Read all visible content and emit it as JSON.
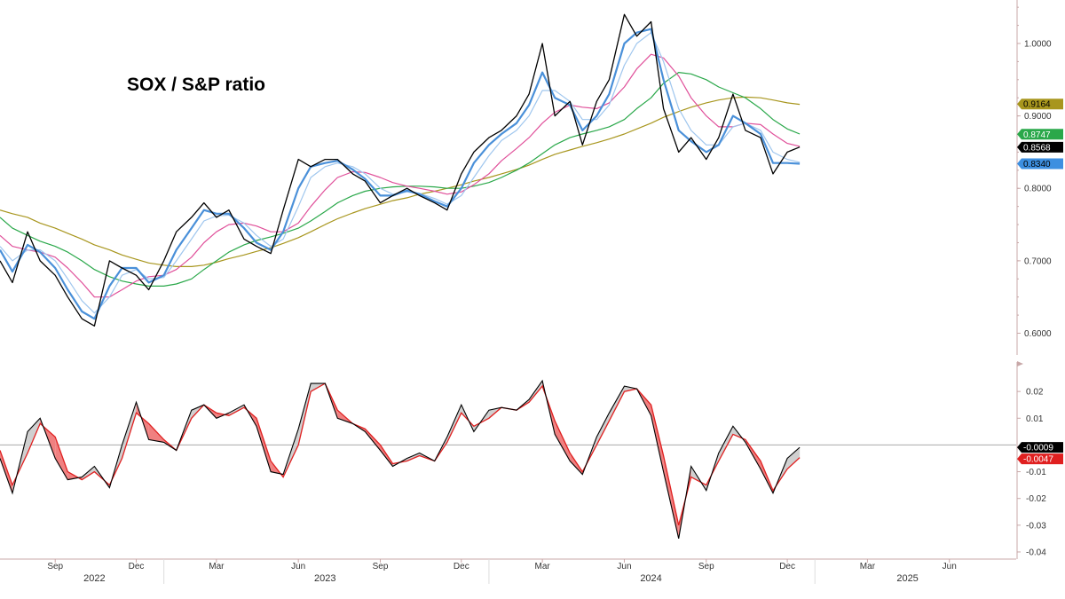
{
  "chart_data": [
    {
      "type": "line",
      "title": "SOX / S&P ratio",
      "ylim": [
        0.57,
        1.06
      ],
      "y_ticks": [
        "0.6000",
        "0.7000",
        "0.8000",
        "0.9000",
        "1.0000"
      ],
      "y_tick_values": [
        0.6,
        0.7,
        0.8,
        0.9,
        1.0
      ],
      "x_range": [
        "2022-07-01",
        "2025-08-15"
      ],
      "series": [
        {
          "key": "ratio",
          "color": "#000000",
          "x": [
            "2022-07-01",
            "2022-07-15",
            "2022-08-01",
            "2022-08-15",
            "2022-09-01",
            "2022-09-15",
            "2022-10-01",
            "2022-10-15",
            "2022-11-01",
            "2022-11-15",
            "2022-12-01",
            "2022-12-15",
            "2023-01-01",
            "2023-01-15",
            "2023-02-01",
            "2023-02-15",
            "2023-03-01",
            "2023-03-15",
            "2023-04-01",
            "2023-04-15",
            "2023-05-01",
            "2023-05-15",
            "2023-06-01",
            "2023-06-15",
            "2023-07-01",
            "2023-07-15",
            "2023-08-01",
            "2023-08-15",
            "2023-09-01",
            "2023-09-15",
            "2023-10-01",
            "2023-10-15",
            "2023-11-01",
            "2023-11-15",
            "2023-12-01",
            "2023-12-15",
            "2024-01-01",
            "2024-01-15",
            "2024-02-01",
            "2024-02-15",
            "2024-03-01",
            "2024-03-15",
            "2024-04-01",
            "2024-04-15",
            "2024-05-01",
            "2024-05-15",
            "2024-06-01",
            "2024-06-15",
            "2024-07-01",
            "2024-07-15",
            "2024-08-01",
            "2024-08-15",
            "2024-09-01",
            "2024-09-15",
            "2024-10-01",
            "2024-10-15",
            "2024-11-01",
            "2024-11-15",
            "2024-12-01",
            "2024-12-15"
          ],
          "y": [
            0.7,
            0.67,
            0.74,
            0.7,
            0.68,
            0.65,
            0.62,
            0.61,
            0.7,
            0.69,
            0.68,
            0.66,
            0.7,
            0.74,
            0.76,
            0.78,
            0.76,
            0.77,
            0.73,
            0.72,
            0.71,
            0.77,
            0.84,
            0.83,
            0.84,
            0.84,
            0.82,
            0.81,
            0.78,
            0.79,
            0.8,
            0.79,
            0.78,
            0.77,
            0.82,
            0.85,
            0.87,
            0.88,
            0.9,
            0.93,
            1.0,
            0.9,
            0.92,
            0.86,
            0.92,
            0.95,
            1.04,
            1.01,
            1.03,
            0.91,
            0.85,
            0.87,
            0.84,
            0.87,
            0.93,
            0.88,
            0.87,
            0.82,
            0.85,
            0.857
          ]
        },
        {
          "key": "ma_fast",
          "color": "#4a90d9",
          "value_label": "0.8340",
          "y": [
            0.715,
            0.685,
            0.722,
            0.712,
            0.69,
            0.66,
            0.63,
            0.62,
            0.665,
            0.69,
            0.69,
            0.67,
            0.68,
            0.715,
            0.745,
            0.77,
            0.765,
            0.765,
            0.745,
            0.725,
            0.715,
            0.74,
            0.8,
            0.83,
            0.835,
            0.838,
            0.826,
            0.813,
            0.79,
            0.79,
            0.797,
            0.792,
            0.782,
            0.775,
            0.8,
            0.835,
            0.86,
            0.875,
            0.89,
            0.915,
            0.96,
            0.925,
            0.915,
            0.88,
            0.9,
            0.93,
            1.0,
            1.015,
            1.02,
            0.95,
            0.88,
            0.865,
            0.85,
            0.86,
            0.9,
            0.89,
            0.875,
            0.835,
            0.835,
            0.834
          ]
        },
        {
          "key": "ma_fast2",
          "color": "#9fc6ee",
          "y": [
            0.72,
            0.7,
            0.715,
            0.715,
            0.7,
            0.675,
            0.645,
            0.628,
            0.65,
            0.68,
            0.688,
            0.675,
            0.677,
            0.7,
            0.73,
            0.755,
            0.762,
            0.763,
            0.752,
            0.735,
            0.72,
            0.73,
            0.775,
            0.815,
            0.83,
            0.835,
            0.83,
            0.82,
            0.8,
            0.792,
            0.795,
            0.793,
            0.786,
            0.778,
            0.79,
            0.815,
            0.845,
            0.866,
            0.88,
            0.9,
            0.935,
            0.935,
            0.92,
            0.895,
            0.895,
            0.915,
            0.97,
            1.0,
            1.015,
            0.975,
            0.91,
            0.88,
            0.86,
            0.86,
            0.885,
            0.89,
            0.88,
            0.85,
            0.84,
            0.836
          ]
        },
        {
          "key": "ma_mid",
          "color": "#e0509a",
          "y": [
            0.735,
            0.72,
            0.715,
            0.712,
            0.705,
            0.69,
            0.67,
            0.65,
            0.65,
            0.66,
            0.672,
            0.678,
            0.68,
            0.688,
            0.705,
            0.725,
            0.74,
            0.75,
            0.752,
            0.748,
            0.74,
            0.74,
            0.752,
            0.775,
            0.798,
            0.815,
            0.823,
            0.822,
            0.815,
            0.808,
            0.803,
            0.8,
            0.796,
            0.792,
            0.795,
            0.805,
            0.82,
            0.838,
            0.855,
            0.87,
            0.89,
            0.905,
            0.915,
            0.912,
            0.91,
            0.918,
            0.94,
            0.965,
            0.985,
            0.98,
            0.955,
            0.925,
            0.9,
            0.885,
            0.885,
            0.89,
            0.888,
            0.875,
            0.862,
            0.858
          ]
        },
        {
          "key": "ma_slow",
          "color": "#2aa84a",
          "value_label": "0.8747",
          "y": [
            0.76,
            0.745,
            0.735,
            0.727,
            0.72,
            0.712,
            0.7,
            0.688,
            0.678,
            0.672,
            0.668,
            0.665,
            0.665,
            0.668,
            0.675,
            0.688,
            0.7,
            0.712,
            0.722,
            0.728,
            0.733,
            0.738,
            0.745,
            0.755,
            0.768,
            0.78,
            0.79,
            0.796,
            0.8,
            0.802,
            0.803,
            0.803,
            0.802,
            0.8,
            0.8,
            0.803,
            0.808,
            0.815,
            0.825,
            0.835,
            0.848,
            0.86,
            0.87,
            0.875,
            0.88,
            0.885,
            0.895,
            0.91,
            0.925,
            0.945,
            0.96,
            0.958,
            0.95,
            0.94,
            0.932,
            0.925,
            0.91,
            0.895,
            0.882,
            0.875
          ]
        },
        {
          "key": "ma_long",
          "color": "#a8961e",
          "value_label": "0.9164",
          "y": [
            0.77,
            0.765,
            0.76,
            0.752,
            0.745,
            0.738,
            0.73,
            0.722,
            0.715,
            0.708,
            0.702,
            0.697,
            0.694,
            0.692,
            0.692,
            0.694,
            0.698,
            0.703,
            0.708,
            0.713,
            0.718,
            0.724,
            0.732,
            0.74,
            0.75,
            0.758,
            0.766,
            0.772,
            0.778,
            0.783,
            0.787,
            0.792,
            0.796,
            0.8,
            0.805,
            0.81,
            0.815,
            0.82,
            0.826,
            0.832,
            0.84,
            0.847,
            0.853,
            0.858,
            0.863,
            0.868,
            0.875,
            0.882,
            0.89,
            0.898,
            0.906,
            0.912,
            0.918,
            0.922,
            0.925,
            0.926,
            0.925,
            0.922,
            0.918,
            0.916
          ]
        }
      ],
      "value_tags": [
        {
          "label": "0.9164",
          "value": 0.9164,
          "bg": "#a8961e",
          "fg": "#000000"
        },
        {
          "label": "0.8747",
          "value": 0.8747,
          "bg": "#2aa84a",
          "fg": "#ffffff"
        },
        {
          "label": "0.8568",
          "value": 0.8568,
          "bg": "#000000",
          "fg": "#ffffff"
        },
        {
          "label": "0.8340",
          "value": 0.834,
          "bg": "#3d8fe0",
          "fg": "#000000"
        }
      ]
    },
    {
      "type": "area",
      "ylim": [
        -0.042,
        0.031
      ],
      "y_ticks": [
        "0.02",
        "0.01",
        "-0.01",
        "-0.02",
        "-0.03",
        "-0.04"
      ],
      "y_tick_values": [
        0.02,
        0.01,
        -0.01,
        -0.02,
        -0.03,
        -0.04
      ],
      "zero_line": 0,
      "series": [
        {
          "key": "osc_black",
          "color": "#000000",
          "value_label": "-0.0009",
          "x": [
            "2022-07-01",
            "2022-07-15",
            "2022-08-01",
            "2022-08-15",
            "2022-09-01",
            "2022-09-15",
            "2022-10-01",
            "2022-10-15",
            "2022-11-01",
            "2022-11-15",
            "2022-12-01",
            "2022-12-15",
            "2023-01-01",
            "2023-01-15",
            "2023-02-01",
            "2023-02-15",
            "2023-03-01",
            "2023-03-15",
            "2023-04-01",
            "2023-04-15",
            "2023-05-01",
            "2023-05-15",
            "2023-06-01",
            "2023-06-15",
            "2023-07-01",
            "2023-07-15",
            "2023-08-01",
            "2023-08-15",
            "2023-09-01",
            "2023-09-15",
            "2023-10-01",
            "2023-10-15",
            "2023-11-01",
            "2023-11-15",
            "2023-12-01",
            "2023-12-15",
            "2024-01-01",
            "2024-01-15",
            "2024-02-01",
            "2024-02-15",
            "2024-03-01",
            "2024-03-15",
            "2024-04-01",
            "2024-04-15",
            "2024-05-01",
            "2024-05-15",
            "2024-06-01",
            "2024-06-15",
            "2024-07-01",
            "2024-07-15",
            "2024-08-01",
            "2024-08-15",
            "2024-09-01",
            "2024-09-15",
            "2024-10-01",
            "2024-10-15",
            "2024-11-01",
            "2024-11-15",
            "2024-12-01",
            "2024-12-15"
          ],
          "y": [
            -0.005,
            -0.018,
            0.005,
            0.01,
            -0.005,
            -0.013,
            -0.012,
            -0.008,
            -0.016,
            0.0,
            0.016,
            0.002,
            0.001,
            -0.002,
            0.013,
            0.015,
            0.01,
            0.012,
            0.015,
            0.007,
            -0.01,
            -0.011,
            0.006,
            0.023,
            0.023,
            0.01,
            0.008,
            0.005,
            -0.002,
            -0.008,
            -0.005,
            -0.003,
            -0.006,
            0.003,
            0.015,
            0.005,
            0.013,
            0.014,
            0.013,
            0.017,
            0.024,
            0.004,
            -0.006,
            -0.011,
            0.003,
            0.012,
            0.022,
            0.021,
            0.011,
            -0.01,
            -0.035,
            -0.008,
            -0.017,
            -0.003,
            0.007,
            0.001,
            -0.009,
            -0.018,
            -0.005,
            -0.0009
          ]
        },
        {
          "key": "osc_red",
          "color": "#e02020",
          "value_label": "-0.0047",
          "y": [
            -0.002,
            -0.015,
            -0.003,
            0.008,
            0.003,
            -0.01,
            -0.013,
            -0.01,
            -0.015,
            -0.005,
            0.012,
            0.008,
            0.002,
            -0.002,
            0.01,
            0.015,
            0.012,
            0.011,
            0.014,
            0.01,
            -0.006,
            -0.012,
            0.0,
            0.02,
            0.023,
            0.013,
            0.008,
            0.006,
            0.0,
            -0.007,
            -0.006,
            -0.004,
            -0.006,
            0.001,
            0.012,
            0.007,
            0.01,
            0.014,
            0.013,
            0.016,
            0.022,
            0.009,
            -0.003,
            -0.01,
            0.0,
            0.009,
            0.02,
            0.021,
            0.015,
            -0.004,
            -0.03,
            -0.012,
            -0.015,
            -0.006,
            0.004,
            0.002,
            -0.006,
            -0.017,
            -0.009,
            -0.0047
          ]
        }
      ],
      "value_tags": [
        {
          "label": "-0.0009",
          "value": -0.0009,
          "bg": "#000000",
          "fg": "#ffffff"
        },
        {
          "label": "-0.0047",
          "value": -0.0047,
          "bg": "#e02020",
          "fg": "#ffffff"
        }
      ]
    }
  ],
  "x_axis": {
    "months": [
      {
        "label": "Sep",
        "date": "2022-09-01"
      },
      {
        "label": "Dec",
        "date": "2022-12-01"
      },
      {
        "label": "Mar",
        "date": "2023-03-01"
      },
      {
        "label": "Jun",
        "date": "2023-06-01"
      },
      {
        "label": "Sep",
        "date": "2023-09-01"
      },
      {
        "label": "Dec",
        "date": "2023-12-01"
      },
      {
        "label": "Mar",
        "date": "2024-03-01"
      },
      {
        "label": "Jun",
        "date": "2024-06-01"
      },
      {
        "label": "Sep",
        "date": "2024-09-01"
      },
      {
        "label": "Dec",
        "date": "2024-12-01"
      },
      {
        "label": "Mar",
        "date": "2025-03-01"
      },
      {
        "label": "Jun",
        "date": "2025-06-01"
      }
    ],
    "years": [
      {
        "label": "2022",
        "date": "2022-10-15"
      },
      {
        "label": "2023",
        "date": "2023-07-01"
      },
      {
        "label": "2024",
        "date": "2024-07-01"
      },
      {
        "label": "2025",
        "date": "2025-04-15"
      }
    ],
    "year_boundaries": [
      "2023-01-01",
      "2024-01-01",
      "2025-01-01"
    ]
  },
  "colors": {
    "axis": "#c8a8a8",
    "zero_line": "#aaaaaa",
    "fill_up": "#d0d0d0",
    "fill_down": "#f08080"
  }
}
